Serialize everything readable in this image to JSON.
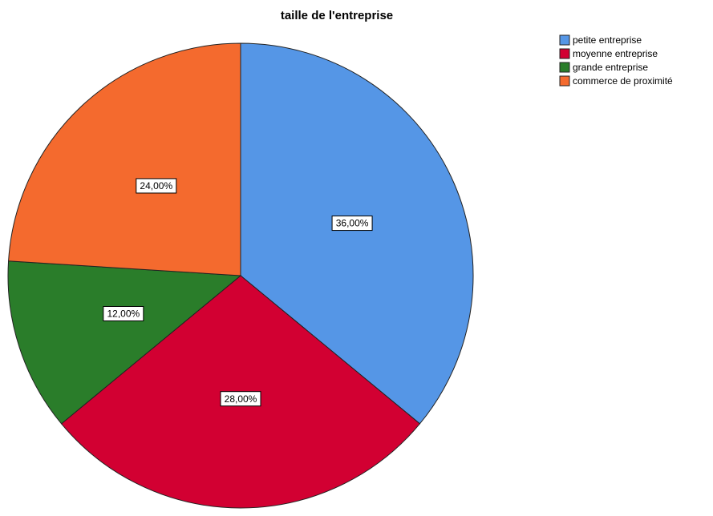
{
  "chart_data": {
    "type": "pie",
    "title": "taille de l'entreprise",
    "categories": [
      "petite entreprise",
      "moyenne entreprise",
      "grande entreprise",
      "commerce de proximité"
    ],
    "values": [
      36,
      28,
      12,
      24
    ],
    "value_labels": [
      "36,00%",
      "28,00%",
      "12,00%",
      "24,00%"
    ],
    "colors": [
      "#5596e6",
      "#d20032",
      "#2a7d2a",
      "#f46a2e"
    ],
    "legend": "upper right"
  }
}
